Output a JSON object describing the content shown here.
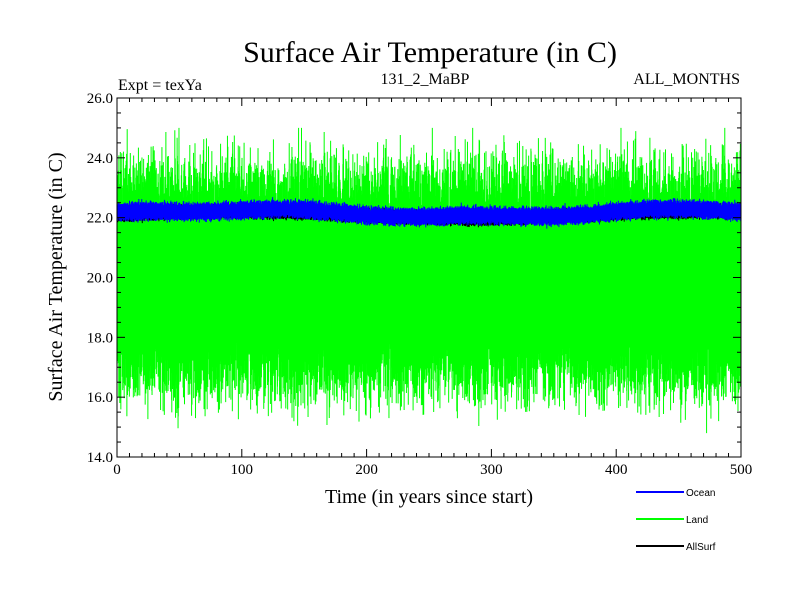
{
  "chart_data": {
    "type": "line",
    "title": "Surface Air Temperature (in C)",
    "subtitle_left": "Expt = texYa",
    "subtitle_center": "131_2_MaBP",
    "subtitle_right": "ALL_MONTHS",
    "xlabel": "Time (in years since start)",
    "ylabel": "Surface Air Temperature (in C)",
    "xlim": [
      0,
      500
    ],
    "ylim": [
      14.0,
      26.0
    ],
    "x_ticks": [
      "0",
      "100",
      "200",
      "300",
      "400",
      "500"
    ],
    "y_ticks": [
      "14.0",
      "16.0",
      "18.0",
      "20.0",
      "22.0",
      "24.0",
      "26.0"
    ],
    "grid": false,
    "legend_position": "bottom-right, outside plot",
    "series": [
      {
        "name": "Ocean",
        "color": "#0000ff",
        "description_values": {
          "mean": 22.15,
          "min": 21.6,
          "max": 22.8
        },
        "x_range": [
          0,
          500
        ],
        "monthly": true
      },
      {
        "name": "Land",
        "color": "#00ff00",
        "description_values": {
          "mean": 20.0,
          "min": 14.8,
          "max": 25.0
        },
        "x_range": [
          0,
          500
        ],
        "monthly": true
      },
      {
        "name": "AllSurf",
        "color": "#000000",
        "description_values": {
          "mean": 22.1,
          "min": 21.6,
          "max": 22.7
        },
        "x_range": [
          0,
          500
        ],
        "monthly": true
      }
    ]
  }
}
